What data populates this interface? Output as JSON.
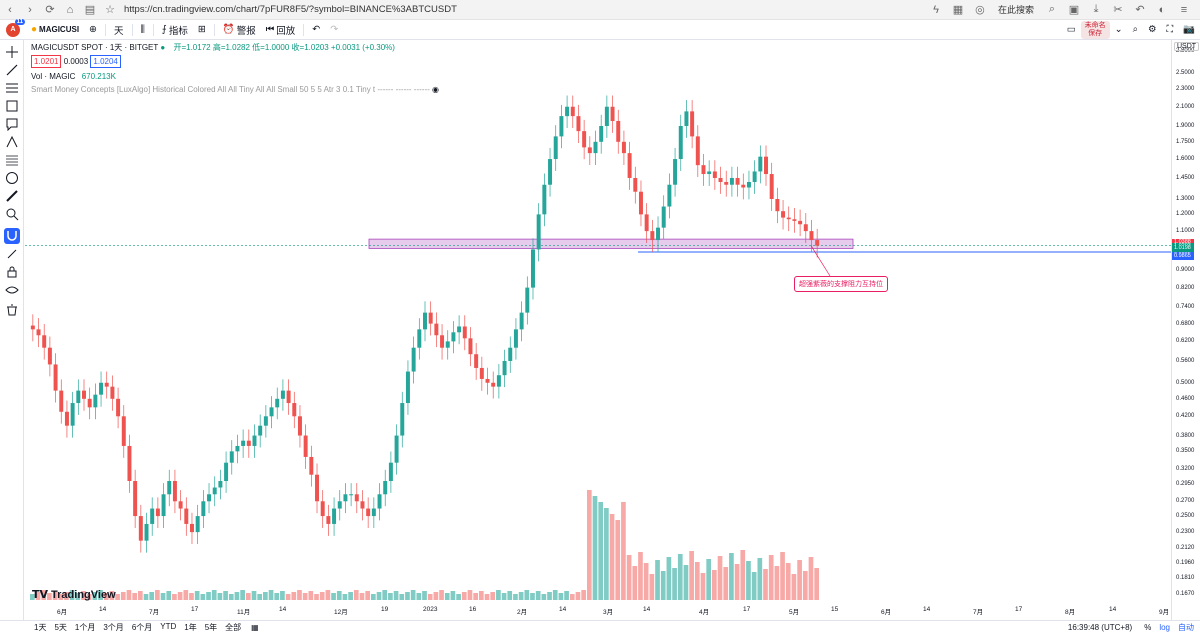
{
  "browser": {
    "url": "https://cn.tradingview.com/chart/7pFUR8F5/?symbol=BINANCE%3ABTCUSDT",
    "search_placeholder": "在此搜索"
  },
  "toolbar": {
    "notif_count": "11",
    "symbol": "MAGICUS‌",
    "symbol_short": "MAGICUSI",
    "interval": "天",
    "indicators_label": "指标",
    "alert_label": "警报",
    "replay_label": "回放",
    "save_label_1": "未命名",
    "save_label_2": "保存"
  },
  "legend": {
    "title": "MAGICUSDT SPOT · 1天 · BITGET",
    "ohlc": "开=1.0172  高=1.0282  低=1.0000  收=1.0203  +0.0031 (+0.30%)",
    "bid": "1.0201",
    "spread": "0.0003",
    "ask": "1.0204",
    "vol_label": "Vol · MAGIC",
    "vol_value": "670.213K",
    "indicator": "Smart Money Concepts [LuxAlgo]  Historical  Colored  All  All  Tiny  All  All  Small  50  5  5  Atr  3  0.1  Tiny  t  ------  ------  ------"
  },
  "annotation": "超强紫薇的支撑阻力互持位",
  "brand": "TradingView",
  "y_axis": {
    "currency": "USDT",
    "ticks": [
      "2.8000",
      "2.5000",
      "2.3000",
      "2.1000",
      "1.9000",
      "1.7500",
      "1.6000",
      "1.4500",
      "1.3000",
      "1.2000",
      "1.1000",
      "0.9000",
      "0.8200",
      "0.7400",
      "0.6800",
      "0.6200",
      "0.5600",
      "0.5000",
      "0.4600",
      "0.4200",
      "0.3800",
      "0.3500",
      "0.3200",
      "0.2950",
      "0.2700",
      "0.2500",
      "0.2300",
      "0.2120",
      "0.1960",
      "0.1810",
      "0.1670"
    ],
    "price_labels": [
      {
        "value": "1.0388",
        "color": "#f23645"
      },
      {
        "value": "1.0203",
        "color": "#089981"
      },
      {
        "value": "1.0198",
        "color": "#089981"
      },
      {
        "value": "0.9895",
        "color": "#2962ff"
      },
      {
        "value": "0.9865",
        "color": "#2962ff"
      }
    ]
  },
  "x_axis": {
    "ticks": [
      "6月",
      "14",
      "7月",
      "17",
      "11月",
      "14",
      "12月",
      "19",
      "2023",
      "16",
      "2月",
      "14",
      "3月",
      "14",
      "4月",
      "17",
      "5月",
      "15",
      "6月",
      "14",
      "7月",
      "17",
      "8月",
      "14",
      "9月"
    ]
  },
  "bottom": {
    "ranges": [
      "1天",
      "5天",
      "1个月",
      "3个月",
      "6个月",
      "YTD",
      "1年",
      "5年",
      "全部"
    ],
    "clock": "16:39:48 (UTC+8)",
    "pct": "%",
    "log": "log",
    "auto": "自动"
  },
  "chart_data": {
    "type": "candlestick",
    "symbol": "MAGICUSDT",
    "colors": {
      "up": "#26a69a",
      "down": "#ef5350",
      "zone": "#e1bee7",
      "line": "#2962ff"
    },
    "support_zone": [
      0.9895,
      1.0388
    ],
    "horizontal_line": 0.9865,
    "closes": [
      0.66,
      0.64,
      0.6,
      0.55,
      0.48,
      0.43,
      0.4,
      0.45,
      0.48,
      0.46,
      0.44,
      0.47,
      0.5,
      0.49,
      0.46,
      0.42,
      0.36,
      0.3,
      0.25,
      0.22,
      0.24,
      0.26,
      0.25,
      0.28,
      0.3,
      0.27,
      0.26,
      0.24,
      0.23,
      0.25,
      0.27,
      0.28,
      0.29,
      0.3,
      0.33,
      0.35,
      0.36,
      0.37,
      0.36,
      0.38,
      0.4,
      0.42,
      0.44,
      0.46,
      0.48,
      0.45,
      0.42,
      0.38,
      0.34,
      0.31,
      0.27,
      0.25,
      0.24,
      0.26,
      0.27,
      0.28,
      0.28,
      0.27,
      0.26,
      0.25,
      0.26,
      0.28,
      0.3,
      0.33,
      0.38,
      0.45,
      0.53,
      0.6,
      0.66,
      0.72,
      0.68,
      0.64,
      0.6,
      0.62,
      0.65,
      0.67,
      0.63,
      0.58,
      0.54,
      0.51,
      0.5,
      0.49,
      0.52,
      0.56,
      0.6,
      0.66,
      0.72,
      0.82,
      1.0,
      1.2,
      1.4,
      1.6,
      1.8,
      2.0,
      2.1,
      2.0,
      1.85,
      1.7,
      1.65,
      1.75,
      1.9,
      2.1,
      1.95,
      1.75,
      1.65,
      1.45,
      1.35,
      1.2,
      1.1,
      1.05,
      1.12,
      1.25,
      1.4,
      1.6,
      1.9,
      2.05,
      1.8,
      1.55,
      1.48,
      1.5,
      1.45,
      1.42,
      1.4,
      1.45,
      1.4,
      1.38,
      1.42,
      1.5,
      1.62,
      1.48,
      1.3,
      1.22,
      1.18,
      1.17,
      1.16,
      1.14,
      1.1,
      1.05,
      1.02
    ],
    "volume_relative": "low before 3月, spike near 3月14 then declining"
  }
}
